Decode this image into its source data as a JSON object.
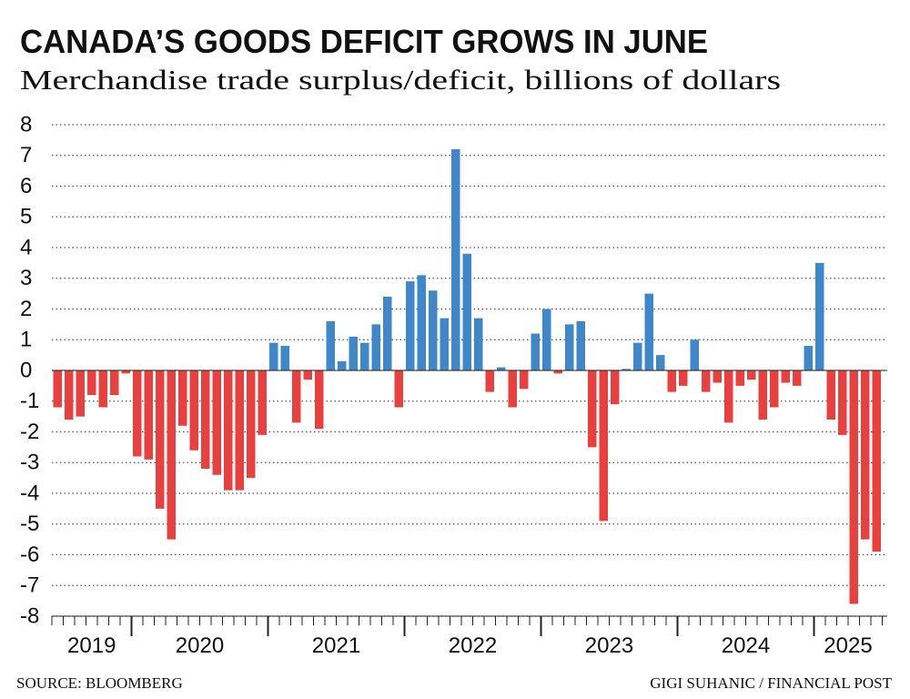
{
  "chart_data": {
    "type": "bar",
    "title": "CANADA’S GOODS DEFICIT GROWS IN JUNE",
    "subtitle": "Merchandise trade surplus/deficit, billions of dollars",
    "source": "SOURCE: BLOOMBERG",
    "credit": "GIGI SUHANIC / FINANCIAL POST",
    "positive_color": "#3f87c8",
    "negative_color": "#e8403f",
    "grid": true,
    "ylim": [
      -8,
      8
    ],
    "yticks": [
      8,
      7,
      6,
      5,
      4,
      3,
      2,
      1,
      0,
      -1,
      -2,
      -3,
      -4,
      -5,
      -6,
      -7,
      -8
    ],
    "groups": [
      {
        "label": "2019",
        "count": 7
      },
      {
        "label": "2020",
        "count": 12
      },
      {
        "label": "2021",
        "count": 12
      },
      {
        "label": "2022",
        "count": 12
      },
      {
        "label": "2023",
        "count": 12
      },
      {
        "label": "2024",
        "count": 12
      },
      {
        "label": "2025",
        "count": 6
      }
    ],
    "values": [
      -1.2,
      -1.6,
      -1.5,
      -0.8,
      -1.2,
      -0.8,
      -0.1,
      -2.8,
      -2.9,
      -4.5,
      -5.5,
      -1.8,
      -2.6,
      -3.2,
      -3.4,
      -3.9,
      -3.9,
      -3.5,
      -2.1,
      0.9,
      0.8,
      -1.7,
      -0.3,
      -1.9,
      1.6,
      0.3,
      1.1,
      0.9,
      1.5,
      2.4,
      -1.2,
      2.9,
      3.1,
      2.6,
      1.7,
      7.2,
      3.8,
      1.7,
      -0.7,
      0.1,
      -1.2,
      -0.6,
      1.2,
      2.0,
      -0.1,
      1.5,
      1.6,
      -2.5,
      -4.9,
      -1.1,
      0.05,
      0.9,
      2.5,
      0.5,
      -0.7,
      -0.5,
      1.0,
      -0.7,
      -0.4,
      -1.7,
      -0.5,
      -0.3,
      -1.6,
      -1.2,
      -0.4,
      -0.5,
      0.8,
      3.5,
      -1.6,
      -2.1,
      -7.6,
      -5.5,
      -5.9
    ]
  }
}
